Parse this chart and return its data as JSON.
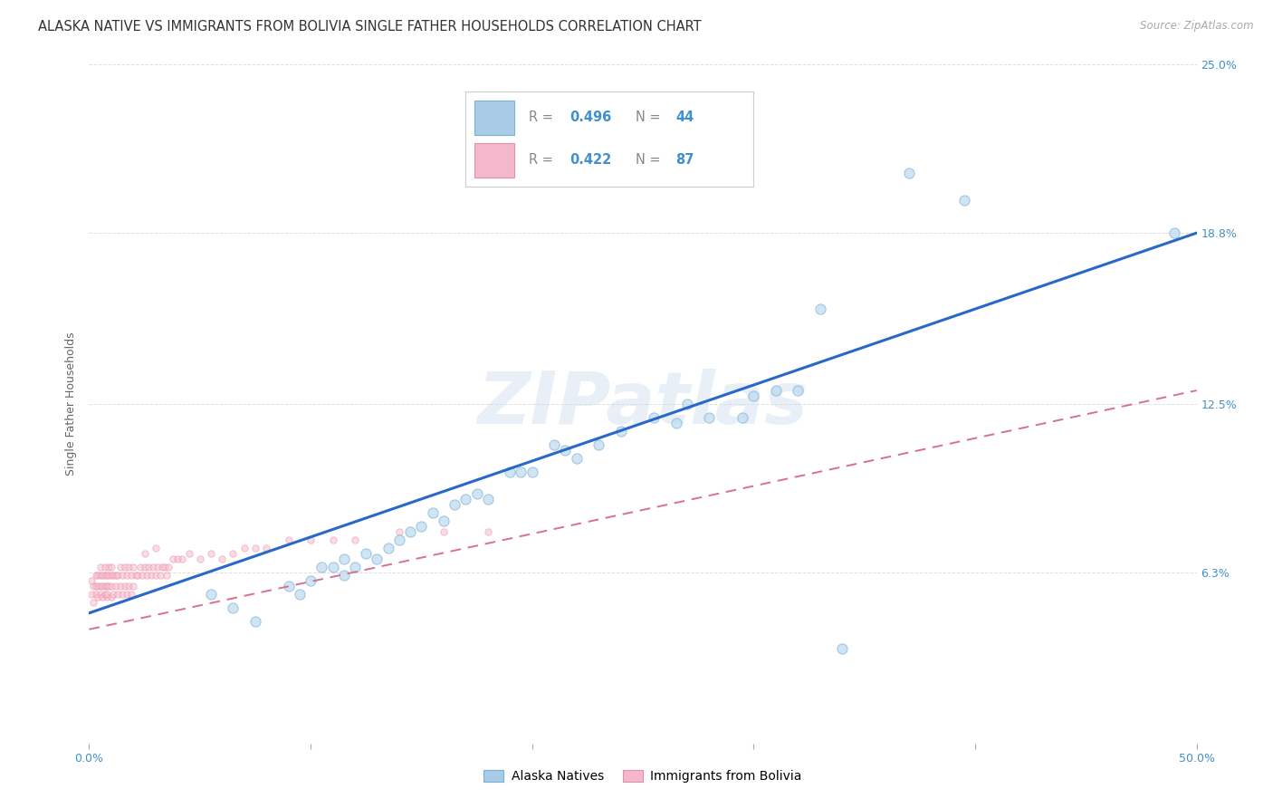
{
  "title": "ALASKA NATIVE VS IMMIGRANTS FROM BOLIVIA SINGLE FATHER HOUSEHOLDS CORRELATION CHART",
  "source": "Source: ZipAtlas.com",
  "ylabel": "Single Father Households",
  "xlim": [
    0.0,
    0.5
  ],
  "ylim": [
    0.0,
    0.25
  ],
  "xtick_vals": [
    0.0,
    0.1,
    0.2,
    0.3,
    0.4,
    0.5
  ],
  "xticklabels": [
    "0.0%",
    "",
    "",
    "",
    "",
    "50.0%"
  ],
  "ytick_right_values": [
    0.0,
    0.063,
    0.125,
    0.188,
    0.25
  ],
  "ytick_right_labels": [
    "",
    "6.3%",
    "12.5%",
    "18.8%",
    "25.0%"
  ],
  "legend_color1": "#a8cce8",
  "legend_color2": "#f4b8cc",
  "legend_edge1": "#7bafd4",
  "legend_edge2": "#e090a8",
  "watermark": "ZIPatlas",
  "blue_scatter_x": [
    0.055,
    0.065,
    0.075,
    0.09,
    0.095,
    0.1,
    0.105,
    0.11,
    0.115,
    0.115,
    0.12,
    0.125,
    0.13,
    0.135,
    0.14,
    0.145,
    0.15,
    0.155,
    0.16,
    0.165,
    0.17,
    0.175,
    0.18,
    0.19,
    0.195,
    0.2,
    0.21,
    0.215,
    0.22,
    0.23,
    0.24,
    0.255,
    0.265,
    0.27,
    0.28,
    0.295,
    0.3,
    0.31,
    0.32,
    0.33,
    0.37,
    0.395,
    0.49,
    0.34
  ],
  "blue_scatter_y": [
    0.055,
    0.05,
    0.045,
    0.058,
    0.055,
    0.06,
    0.065,
    0.065,
    0.068,
    0.062,
    0.065,
    0.07,
    0.068,
    0.072,
    0.075,
    0.078,
    0.08,
    0.085,
    0.082,
    0.088,
    0.09,
    0.092,
    0.09,
    0.1,
    0.1,
    0.1,
    0.11,
    0.108,
    0.105,
    0.11,
    0.115,
    0.12,
    0.118,
    0.125,
    0.12,
    0.12,
    0.128,
    0.13,
    0.13,
    0.16,
    0.21,
    0.2,
    0.188,
    0.035
  ],
  "pink_scatter_x": [
    0.001,
    0.001,
    0.002,
    0.002,
    0.003,
    0.003,
    0.003,
    0.004,
    0.004,
    0.004,
    0.005,
    0.005,
    0.005,
    0.005,
    0.006,
    0.006,
    0.006,
    0.007,
    0.007,
    0.007,
    0.007,
    0.008,
    0.008,
    0.008,
    0.008,
    0.009,
    0.009,
    0.009,
    0.01,
    0.01,
    0.01,
    0.01,
    0.011,
    0.011,
    0.012,
    0.012,
    0.013,
    0.013,
    0.014,
    0.014,
    0.015,
    0.015,
    0.016,
    0.016,
    0.017,
    0.017,
    0.018,
    0.018,
    0.019,
    0.019,
    0.02,
    0.02,
    0.021,
    0.022,
    0.023,
    0.024,
    0.025,
    0.026,
    0.027,
    0.028,
    0.029,
    0.03,
    0.031,
    0.032,
    0.033,
    0.034,
    0.035,
    0.036,
    0.038,
    0.04,
    0.042,
    0.045,
    0.05,
    0.055,
    0.06,
    0.065,
    0.07,
    0.075,
    0.08,
    0.09,
    0.1,
    0.11,
    0.12,
    0.14,
    0.16,
    0.18,
    0.025,
    0.03
  ],
  "pink_scatter_y": [
    0.055,
    0.06,
    0.052,
    0.058,
    0.055,
    0.058,
    0.062,
    0.054,
    0.058,
    0.062,
    0.055,
    0.058,
    0.062,
    0.065,
    0.054,
    0.058,
    0.062,
    0.055,
    0.058,
    0.062,
    0.065,
    0.054,
    0.058,
    0.062,
    0.055,
    0.058,
    0.062,
    0.065,
    0.054,
    0.058,
    0.062,
    0.065,
    0.055,
    0.062,
    0.058,
    0.062,
    0.055,
    0.062,
    0.058,
    0.065,
    0.055,
    0.062,
    0.058,
    0.065,
    0.055,
    0.062,
    0.058,
    0.065,
    0.055,
    0.062,
    0.058,
    0.065,
    0.062,
    0.062,
    0.065,
    0.062,
    0.065,
    0.062,
    0.065,
    0.062,
    0.065,
    0.062,
    0.065,
    0.062,
    0.065,
    0.065,
    0.062,
    0.065,
    0.068,
    0.068,
    0.068,
    0.07,
    0.068,
    0.07,
    0.068,
    0.07,
    0.072,
    0.072,
    0.072,
    0.075,
    0.075,
    0.075,
    0.075,
    0.078,
    0.078,
    0.078,
    0.07,
    0.072
  ],
  "blue_line_x0": 0.0,
  "blue_line_x1": 0.5,
  "blue_line_y0": 0.048,
  "blue_line_y1": 0.188,
  "pink_line_x0": 0.0,
  "pink_line_x1": 0.5,
  "pink_line_y0": 0.042,
  "pink_line_y1": 0.13,
  "scatter_size_blue": 65,
  "scatter_size_pink": 28,
  "scatter_alpha_blue": 0.65,
  "scatter_alpha_pink": 0.55,
  "scatter_color_blue": "#b8d8ee",
  "scatter_color_pink": "#f8c0d0",
  "scatter_edge_blue": "#80b0d8",
  "scatter_edge_pink": "#e890a8",
  "line_color_blue": "#2868c8",
  "line_color_pink": "#d87090",
  "grid_color": "#e0e0e0",
  "background_color": "#ffffff",
  "title_fontsize": 10.5,
  "axis_label_fontsize": 9,
  "tick_fontsize": 9,
  "tick_color": "#4090d0"
}
